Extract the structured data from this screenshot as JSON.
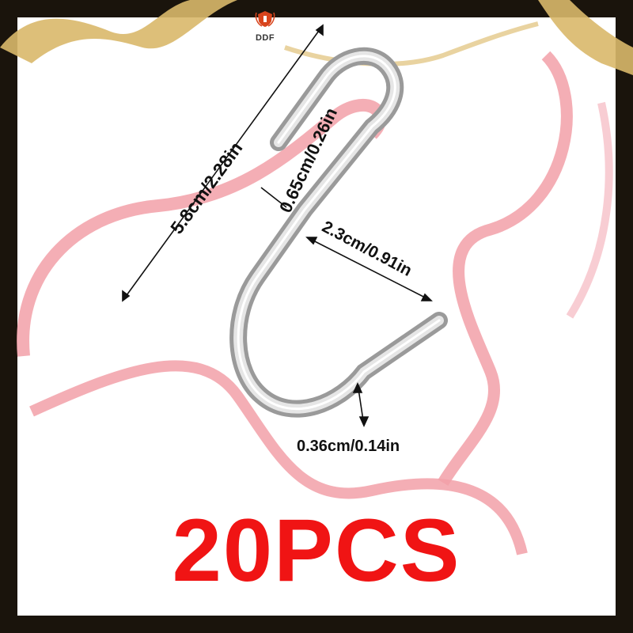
{
  "brand": {
    "logo_text": "DDF"
  },
  "dimensions": {
    "total_length": "5.8cm/2.28in",
    "top_gap": "0.65cm/0.26in",
    "bottom_opening": "2.3cm/0.91in",
    "wire_thickness": "0.36cm/0.14in"
  },
  "quantity_label": "20PCS",
  "colors": {
    "quantity": "#f01414",
    "ribbon": "#f2a0a8",
    "gold": "#d9b86a",
    "frame": "#1a140c"
  },
  "icons": [
    "shield-logo-icon"
  ]
}
